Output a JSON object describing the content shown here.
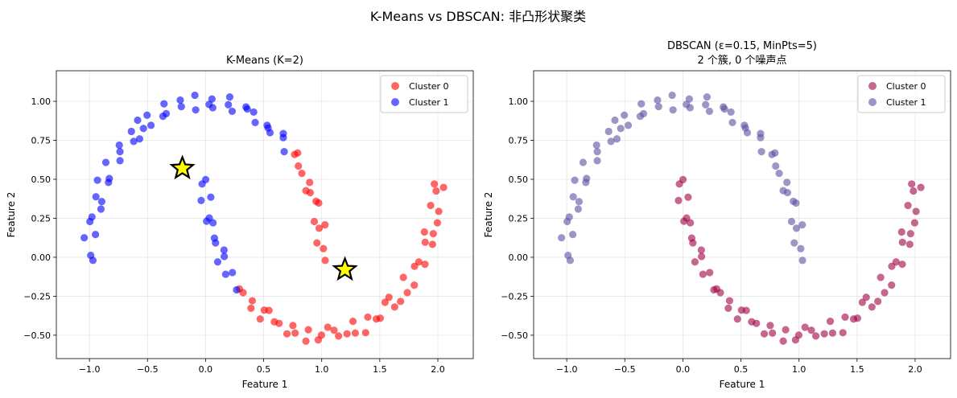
{
  "figure": {
    "suptitle": "K-Means vs DBSCAN: 非凸形状聚类"
  },
  "chart_data": [
    {
      "type": "scatter",
      "title": "K-Means (K=2)",
      "xlabel": "Feature 1",
      "ylabel": "Feature 2",
      "xlim": [
        -1.285,
        2.305
      ],
      "ylim": [
        -0.65,
        1.196
      ],
      "xticks": [
        -1.0,
        -0.5,
        0.0,
        0.5,
        1.0,
        1.5,
        2.0
      ],
      "xtick_labels": [
        "−1.0",
        "−0.5",
        "0.0",
        "0.5",
        "1.0",
        "1.5",
        "2.0"
      ],
      "yticks": [
        -0.5,
        -0.25,
        0.0,
        0.25,
        0.5,
        0.75,
        1.0
      ],
      "ytick_labels": [
        "−0.50",
        "−0.25",
        "0.00",
        "0.25",
        "0.50",
        "0.75",
        "1.00"
      ],
      "grid": true,
      "legend_placement": "top-right",
      "label_key": "kmeans",
      "series": [
        {
          "name": "Cluster 0",
          "label": 0,
          "color": "#ff0000"
        },
        {
          "name": "Cluster 1",
          "label": 1,
          "color": "#0000ff"
        }
      ],
      "centroids": [
        [
          -0.2,
          0.57
        ],
        [
          1.2,
          -0.08
        ]
      ],
      "centroid_color": "#ffff00"
    },
    {
      "type": "scatter",
      "title": "DBSCAN (ε=0.15, MinPts=5)",
      "subtitle": "2 个簇, 0 个噪声点",
      "xlabel": "Feature 1",
      "ylabel": "Feature 2",
      "xlim": [
        -1.285,
        2.305
      ],
      "ylim": [
        -0.65,
        1.196
      ],
      "xticks": [
        -1.0,
        -0.5,
        0.0,
        0.5,
        1.0,
        1.5,
        2.0
      ],
      "xtick_labels": [
        "−1.0",
        "−0.5",
        "0.0",
        "0.5",
        "1.0",
        "1.5",
        "2.0"
      ],
      "yticks": [
        -0.5,
        -0.25,
        0.0,
        0.25,
        0.5,
        0.75,
        1.0
      ],
      "ytick_labels": [
        "−0.50",
        "−0.25",
        "0.00",
        "0.25",
        "0.50",
        "0.75",
        "1.00"
      ],
      "grid": true,
      "legend_placement": "top-right",
      "label_key": "dbscan",
      "series": [
        {
          "name": "Cluster 0",
          "label": 0,
          "color": "#9e0142"
        },
        {
          "name": "Cluster 1",
          "label": 1,
          "color": "#5e4fa2"
        }
      ]
    }
  ],
  "points_fields": [
    "x",
    "y",
    "kmeans",
    "dbscan"
  ],
  "points": [
    [
      1.03,
      -0.02,
      0,
      1
    ],
    [
      0.959,
      0.092,
      0,
      1
    ],
    [
      1.015,
      0.055,
      0,
      1
    ],
    [
      0.978,
      0.186,
      0,
      1
    ],
    [
      1.028,
      0.208,
      0,
      1
    ],
    [
      0.936,
      0.229,
      0,
      1
    ],
    [
      0.951,
      0.359,
      0,
      1
    ],
    [
      0.974,
      0.348,
      0,
      1
    ],
    [
      0.864,
      0.427,
      0,
      1
    ],
    [
      0.901,
      0.414,
      0,
      1
    ],
    [
      0.896,
      0.48,
      0,
      1
    ],
    [
      0.799,
      0.585,
      0,
      1
    ],
    [
      0.829,
      0.538,
      0,
      1
    ],
    [
      0.767,
      0.659,
      0,
      1
    ],
    [
      0.793,
      0.669,
      0,
      1
    ],
    [
      0.677,
      0.677,
      1,
      1
    ],
    [
      0.669,
      0.793,
      1,
      1
    ],
    [
      0.669,
      0.767,
      1,
      1
    ],
    [
      0.538,
      0.829,
      1,
      1
    ],
    [
      0.555,
      0.799,
      1,
      1
    ],
    [
      0.53,
      0.846,
      1,
      1
    ],
    [
      0.414,
      0.931,
      1,
      1
    ],
    [
      0.427,
      0.864,
      1,
      1
    ],
    [
      0.348,
      0.964,
      1,
      1
    ],
    [
      0.359,
      0.951,
      1,
      1
    ],
    [
      0.229,
      0.936,
      1,
      1
    ],
    [
      0.208,
      1.028,
      1,
      1
    ],
    [
      0.196,
      0.978,
      1,
      1
    ],
    [
      0.055,
      1.015,
      1,
      1
    ],
    [
      0.062,
      0.959,
      1,
      1
    ],
    [
      0.03,
      0.98,
      1,
      1
    ],
    [
      -0.092,
      1.039,
      1,
      1
    ],
    [
      -0.085,
      0.945,
      1,
      1
    ],
    [
      -0.218,
      1.008,
      1,
      1
    ],
    [
      -0.209,
      0.966,
      1,
      1
    ],
    [
      -0.339,
      0.921,
      1,
      1
    ],
    [
      -0.358,
      0.984,
      1,
      1
    ],
    [
      -0.367,
      0.904,
      1,
      1
    ],
    [
      -0.504,
      0.911,
      1,
      1
    ],
    [
      -0.535,
      0.826,
      1,
      1
    ],
    [
      -0.47,
      0.846,
      1,
      1
    ],
    [
      -0.585,
      0.879,
      1,
      1
    ],
    [
      -0.568,
      0.759,
      1,
      1
    ],
    [
      -0.639,
      0.807,
      1,
      1
    ],
    [
      -0.619,
      0.743,
      1,
      1
    ],
    [
      -0.737,
      0.677,
      1,
      1
    ],
    [
      -0.743,
      0.719,
      1,
      1
    ],
    [
      -0.737,
      0.619,
      1,
      1
    ],
    [
      -0.859,
      0.608,
      1,
      1
    ],
    [
      -0.829,
      0.505,
      1,
      1
    ],
    [
      -0.836,
      0.48,
      1,
      1
    ],
    [
      -0.931,
      0.494,
      1,
      1
    ],
    [
      -0.894,
      0.357,
      1,
      1
    ],
    [
      -0.944,
      0.388,
      1,
      1
    ],
    [
      -0.901,
      0.309,
      1,
      1
    ],
    [
      -0.996,
      0.229,
      1,
      1
    ],
    [
      -0.978,
      0.258,
      1,
      1
    ],
    [
      -0.948,
      0.146,
      1,
      1
    ],
    [
      -1.045,
      0.125,
      1,
      1
    ],
    [
      -0.989,
      0.012,
      1,
      1
    ],
    [
      -0.97,
      -0.02,
      1,
      1
    ],
    [
      -0.03,
      0.47,
      1,
      0
    ],
    [
      0.001,
      0.498,
      1,
      0
    ],
    [
      0.045,
      0.385,
      1,
      0
    ],
    [
      -0.038,
      0.364,
      1,
      0
    ],
    [
      0.032,
      0.252,
      1,
      0
    ],
    [
      0.064,
      0.221,
      1,
      0
    ],
    [
      0.009,
      0.231,
      1,
      0
    ],
    [
      0.086,
      0.092,
      1,
      0
    ],
    [
      0.076,
      0.123,
      1,
      0
    ],
    [
      0.159,
      0.046,
      1,
      0
    ],
    [
      0.104,
      -0.03,
      1,
      0
    ],
    [
      0.161,
      0.005,
      1,
      0
    ],
    [
      0.231,
      -0.098,
      1,
      0
    ],
    [
      0.173,
      -0.109,
      1,
      0
    ],
    [
      0.267,
      -0.209,
      1,
      0
    ],
    [
      0.323,
      -0.227,
      0,
      0
    ],
    [
      0.291,
      -0.203,
      0,
      0
    ],
    [
      0.391,
      -0.327,
      0,
      0
    ],
    [
      0.402,
      -0.279,
      0,
      0
    ],
    [
      0.505,
      -0.339,
      0,
      0
    ],
    [
      0.47,
      -0.396,
      0,
      0
    ],
    [
      0.546,
      -0.341,
      0,
      0
    ],
    [
      0.633,
      -0.424,
      0,
      0
    ],
    [
      0.592,
      -0.414,
      0,
      0
    ],
    [
      0.701,
      -0.491,
      0,
      0
    ],
    [
      0.771,
      -0.486,
      0,
      0
    ],
    [
      0.752,
      -0.438,
      0,
      0
    ],
    [
      0.864,
      -0.538,
      0,
      0
    ],
    [
      0.885,
      -0.465,
      0,
      0
    ],
    [
      0.998,
      -0.499,
      0,
      0
    ],
    [
      0.97,
      -0.53,
      0,
      0
    ],
    [
      1.052,
      -0.449,
      0,
      0
    ],
    [
      1.145,
      -0.505,
      0,
      0
    ],
    [
      1.106,
      -0.468,
      0,
      0
    ],
    [
      1.218,
      -0.491,
      0,
      0
    ],
    [
      1.289,
      -0.486,
      0,
      0
    ],
    [
      1.269,
      -0.411,
      0,
      0
    ],
    [
      1.378,
      -0.484,
      0,
      0
    ],
    [
      1.397,
      -0.384,
      0,
      0
    ],
    [
      1.504,
      -0.391,
      0,
      0
    ],
    [
      1.47,
      -0.396,
      0,
      0
    ],
    [
      1.545,
      -0.289,
      0,
      0
    ],
    [
      1.628,
      -0.319,
      0,
      0
    ],
    [
      1.579,
      -0.257,
      0,
      0
    ],
    [
      1.679,
      -0.283,
      0,
      0
    ],
    [
      1.737,
      -0.227,
      0,
      0
    ],
    [
      1.703,
      -0.129,
      0,
      0
    ],
    [
      1.797,
      -0.179,
      0,
      0
    ],
    [
      1.799,
      -0.058,
      0,
      0
    ],
    [
      1.889,
      -0.045,
      0,
      0
    ],
    [
      1.836,
      -0.03,
      0,
      0
    ],
    [
      1.891,
      0.096,
      0,
      0
    ],
    [
      1.954,
      0.083,
      0,
      0
    ],
    [
      1.884,
      0.162,
      0,
      0
    ],
    [
      1.961,
      0.151,
      0,
      0
    ],
    [
      1.996,
      0.221,
      0,
      0
    ],
    [
      1.938,
      0.332,
      0,
      0
    ],
    [
      2.008,
      0.294,
      0,
      0
    ],
    [
      1.985,
      0.425,
      0,
      0
    ],
    [
      2.049,
      0.448,
      0,
      0
    ],
    [
      1.97,
      0.47,
      0,
      0
    ]
  ]
}
